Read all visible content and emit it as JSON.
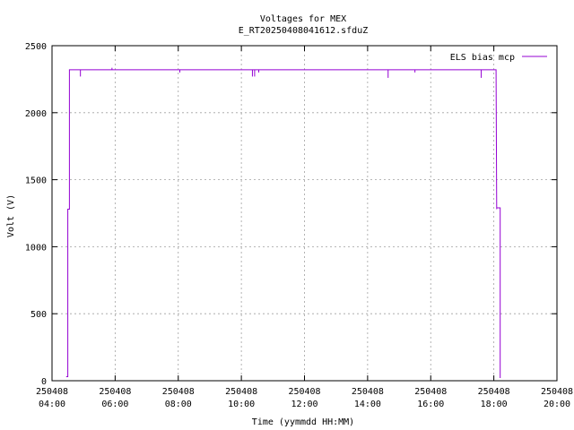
{
  "chart_data": {
    "type": "line",
    "title": "Voltages for MEX",
    "subtitle": "E_RT20250408041612.sfduZ",
    "xlabel": "Time (yymmdd HH:MM)",
    "ylabel": "Volt (V)",
    "xlim": [
      4.0,
      20.0
    ],
    "ylim": [
      0,
      2500
    ],
    "grid": true,
    "legend_position": "top-right",
    "x_ticks": [
      {
        "value": 4,
        "date": "250408",
        "time": "04:00"
      },
      {
        "value": 6,
        "date": "250408",
        "time": "06:00"
      },
      {
        "value": 8,
        "date": "250408",
        "time": "08:00"
      },
      {
        "value": 10,
        "date": "250408",
        "time": "10:00"
      },
      {
        "value": 12,
        "date": "250408",
        "time": "12:00"
      },
      {
        "value": 14,
        "date": "250408",
        "time": "14:00"
      },
      {
        "value": 16,
        "date": "250408",
        "time": "16:00"
      },
      {
        "value": 18,
        "date": "250408",
        "time": "18:00"
      },
      {
        "value": 20,
        "date": "250408",
        "time": "20:00"
      }
    ],
    "y_ticks": [
      0,
      500,
      1000,
      1500,
      2000,
      2500
    ],
    "series": [
      {
        "name": "ELS bias mcp",
        "color": "#9400d3",
        "x": [
          4.45,
          4.5,
          4.5,
          4.55,
          4.55,
          4.6,
          4.6,
          18.07,
          18.09,
          18.09,
          18.2,
          18.2,
          18.2
        ],
        "y": [
          30,
          30,
          1280,
          1280,
          2320,
          2320,
          2320,
          2320,
          1280,
          1290,
          1290,
          1280,
          20
        ]
      }
    ],
    "dips": [
      {
        "x": 4.9,
        "y": 2270
      },
      {
        "x": 5.9,
        "y": 2335
      },
      {
        "x": 8.05,
        "y": 2300
      },
      {
        "x": 10.35,
        "y": 2270
      },
      {
        "x": 10.42,
        "y": 2270
      },
      {
        "x": 10.55,
        "y": 2300
      },
      {
        "x": 14.65,
        "y": 2260
      },
      {
        "x": 15.5,
        "y": 2300
      },
      {
        "x": 17.6,
        "y": 2260
      }
    ]
  }
}
